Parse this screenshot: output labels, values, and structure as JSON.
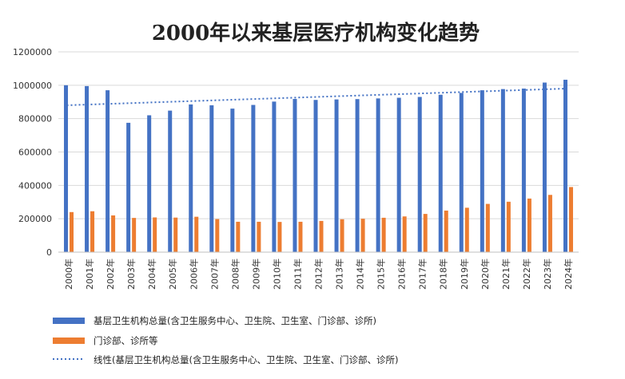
{
  "chart_data": {
    "type": "bar",
    "title": "2000年以来基层医疗机构变化趋势",
    "categories": [
      "2000年",
      "2001年",
      "2002年",
      "2003年",
      "2004年",
      "2005年",
      "2006年",
      "2007年",
      "2008年",
      "2009年",
      "2010年",
      "2011年",
      "2012年",
      "2013年",
      "2014年",
      "2015年",
      "2016年",
      "2017年",
      "2018年",
      "2019年",
      "2020年",
      "2021年",
      "2022年",
      "2023年",
      "2024年"
    ],
    "series": [
      {
        "name": "基层卫生机构总量(含卫生服务中心、卫生院、卫生室、门诊部、诊所)",
        "color": "#4472c4",
        "values": [
          1000000,
          995000,
          970000,
          775000,
          820000,
          848000,
          885000,
          880000,
          860000,
          882000,
          902000,
          918000,
          912000,
          915000,
          917000,
          921000,
          925000,
          930000,
          943000,
          954000,
          970000,
          977000,
          980000,
          1016000,
          1033000
        ]
      },
      {
        "name": "门诊部、诊所等",
        "color": "#ed7d31",
        "values": [
          240000,
          245000,
          220000,
          205000,
          208000,
          207000,
          212000,
          198000,
          182000,
          182000,
          181000,
          182000,
          187000,
          197000,
          200000,
          206000,
          214000,
          229000,
          249000,
          266000,
          289000,
          302000,
          321000,
          343000,
          390000
        ]
      }
    ],
    "trendline": {
      "name": "线性(基层卫生机构总量(含卫生服务中心、卫生院、卫生室、门诊部、诊所)",
      "color": "#4472c4",
      "start": 880000,
      "end": 980000
    },
    "ylim": [
      0,
      1200000
    ],
    "yticks": [
      "0",
      "200000",
      "400000",
      "600000",
      "800000",
      "1000000",
      "1200000"
    ],
    "ytick_values": [
      0,
      200000,
      400000,
      600000,
      800000,
      1000000,
      1200000
    ],
    "xlabel": "",
    "ylabel": "",
    "grid": true,
    "legend_position": "bottom-left"
  }
}
